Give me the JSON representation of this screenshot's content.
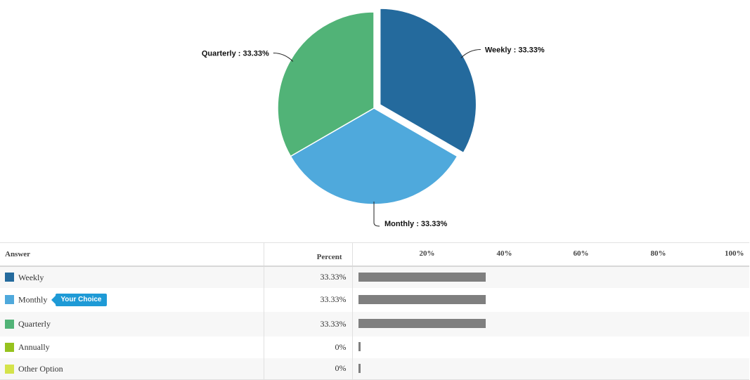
{
  "chart_data": [
    {
      "type": "pie",
      "slices": [
        {
          "label": "Weekly",
          "value": 33.33,
          "label_text": "Weekly : 33.33%",
          "color": "#246a9d",
          "exploded": true
        },
        {
          "label": "Monthly",
          "value": 33.33,
          "label_text": "Monthly : 33.33%",
          "color": "#4fa9dc",
          "exploded": false
        },
        {
          "label": "Quarterly",
          "value": 33.33,
          "label_text": "Quarterly : 33.33%",
          "color": "#51b377",
          "exploded": false
        }
      ]
    },
    {
      "type": "table",
      "columns": [
        "Answer",
        "Percent"
      ],
      "x_ticks": [
        "20%",
        "40%",
        "60%",
        "80%",
        "100%"
      ],
      "rows": [
        {
          "answer": "Weekly",
          "percent_text": "33.33%",
          "value": 33.33,
          "color": "#246a9d"
        },
        {
          "answer": "Monthly",
          "percent_text": "33.33%",
          "value": 33.33,
          "color": "#4fa9dc",
          "badge": "Your Choice"
        },
        {
          "answer": "Quarterly",
          "percent_text": "33.33%",
          "value": 33.33,
          "color": "#51b377"
        },
        {
          "answer": "Annually",
          "percent_text": "0%",
          "value": 0,
          "color": "#96c21e"
        },
        {
          "answer": "Other Option",
          "percent_text": "0%",
          "value": 0,
          "color": "#d4e34a"
        }
      ]
    }
  ]
}
